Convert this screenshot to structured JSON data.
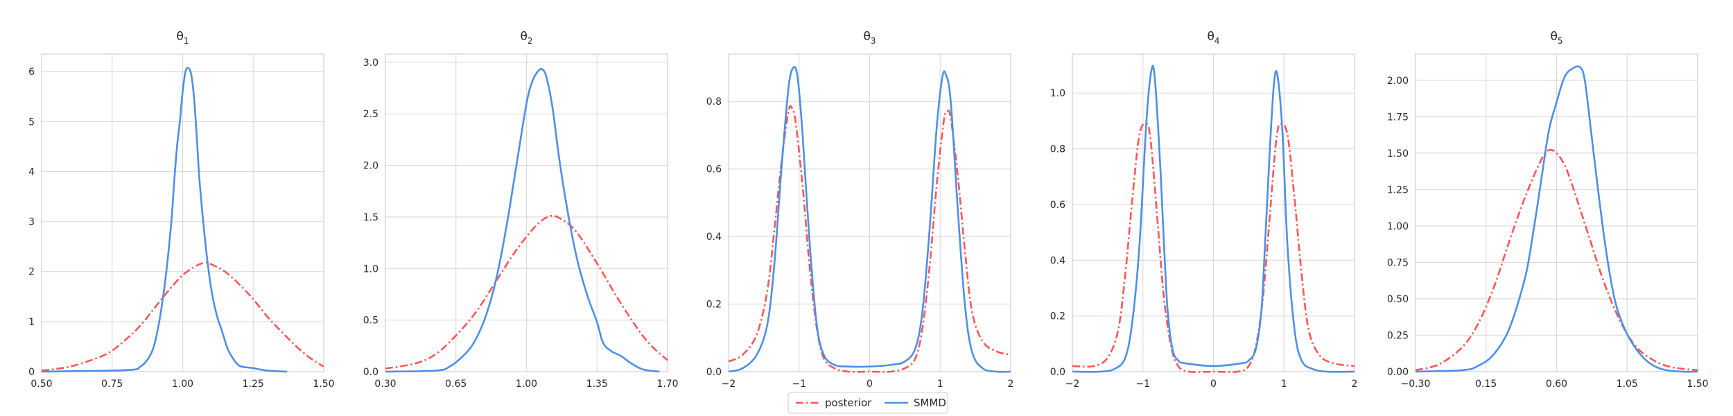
{
  "chart_data": [
    {
      "type": "line",
      "title": "θ",
      "title_sub": "1",
      "xlim": [
        0.5,
        1.5
      ],
      "ylim": [
        0,
        6.35
      ],
      "xticks": [
        0.5,
        0.75,
        1.0,
        1.25,
        1.5
      ],
      "xtick_labels": [
        "0.50",
        "0.75",
        "1.00",
        "1.25",
        "1.50"
      ],
      "yticks": [
        0,
        1,
        2,
        3,
        4,
        5,
        6
      ],
      "ytick_labels": [
        "0",
        "1",
        "2",
        "3",
        "4",
        "5",
        "6"
      ],
      "grid": true,
      "series": [
        {
          "name": "posterior",
          "style": "dashdot",
          "color": "#ff5555",
          "x": [
            0.5,
            0.6,
            0.7,
            0.75,
            0.8,
            0.85,
            0.9,
            0.95,
            1.0,
            1.05,
            1.08,
            1.1,
            1.15,
            1.2,
            1.25,
            1.3,
            1.35,
            1.4,
            1.45,
            1.5
          ],
          "y": [
            0.02,
            0.1,
            0.28,
            0.42,
            0.65,
            0.92,
            1.27,
            1.62,
            1.93,
            2.12,
            2.18,
            2.15,
            2.0,
            1.75,
            1.45,
            1.1,
            0.8,
            0.52,
            0.28,
            0.1
          ]
        },
        {
          "name": "SMMD",
          "style": "solid",
          "color": "#4c8fe8",
          "x": [
            0.5,
            0.8,
            0.85,
            0.88,
            0.9,
            0.92,
            0.94,
            0.96,
            0.97,
            0.98,
            0.99,
            1.0,
            1.01,
            1.02,
            1.03,
            1.04,
            1.05,
            1.06,
            1.08,
            1.1,
            1.12,
            1.14,
            1.16,
            1.18,
            1.2,
            1.22,
            1.25,
            1.3,
            1.37
          ],
          "y": [
            0.0,
            0.03,
            0.1,
            0.28,
            0.55,
            1.1,
            1.9,
            3.0,
            3.8,
            4.5,
            5.0,
            5.6,
            6.0,
            6.07,
            5.95,
            5.5,
            4.7,
            3.8,
            2.6,
            1.7,
            1.15,
            0.8,
            0.45,
            0.25,
            0.12,
            0.09,
            0.07,
            0.02,
            0.0
          ]
        }
      ]
    },
    {
      "type": "line",
      "title": "θ",
      "title_sub": "2",
      "xlim": [
        0.3,
        1.7
      ],
      "ylim": [
        0,
        3.08
      ],
      "xticks": [
        0.3,
        0.65,
        1.0,
        1.35,
        1.7
      ],
      "xtick_labels": [
        "0.30",
        "0.65",
        "1.00",
        "1.35",
        "1.70"
      ],
      "yticks": [
        0,
        0.5,
        1.0,
        1.5,
        2.0,
        2.5,
        3.0
      ],
      "ytick_labels": [
        "0.0",
        "0.5",
        "1.0",
        "1.5",
        "2.0",
        "2.5",
        "3.0"
      ],
      "grid": true,
      "series": [
        {
          "name": "posterior",
          "style": "dashdot",
          "color": "#ff5555",
          "x": [
            0.3,
            0.45,
            0.55,
            0.65,
            0.75,
            0.85,
            0.95,
            1.05,
            1.12,
            1.18,
            1.25,
            1.35,
            1.45,
            1.55,
            1.62,
            1.7
          ],
          "y": [
            0.03,
            0.08,
            0.17,
            0.35,
            0.58,
            0.88,
            1.18,
            1.42,
            1.51,
            1.47,
            1.35,
            1.05,
            0.72,
            0.42,
            0.25,
            0.11
          ]
        },
        {
          "name": "SMMD",
          "style": "solid",
          "color": "#4c8fe8",
          "x": [
            0.3,
            0.55,
            0.62,
            0.7,
            0.75,
            0.8,
            0.85,
            0.9,
            0.95,
            1.0,
            1.03,
            1.06,
            1.08,
            1.1,
            1.13,
            1.16,
            1.2,
            1.25,
            1.3,
            1.35,
            1.38,
            1.42,
            1.47,
            1.52,
            1.58,
            1.66
          ],
          "y": [
            0.0,
            0.01,
            0.05,
            0.18,
            0.32,
            0.55,
            0.9,
            1.4,
            2.0,
            2.6,
            2.82,
            2.92,
            2.93,
            2.85,
            2.55,
            2.1,
            1.6,
            1.1,
            0.75,
            0.48,
            0.28,
            0.2,
            0.15,
            0.08,
            0.02,
            0.0
          ]
        }
      ]
    },
    {
      "type": "line",
      "title": "θ",
      "title_sub": "3",
      "xlim": [
        -2,
        2
      ],
      "ylim": [
        0,
        0.94
      ],
      "xticks": [
        -2,
        -1,
        0,
        1,
        2
      ],
      "xtick_labels": [
        "−2",
        "−1",
        "0",
        "1",
        "2"
      ],
      "yticks": [
        0,
        0.2,
        0.4,
        0.6,
        0.8
      ],
      "ytick_labels": [
        "0.0",
        "0.2",
        "0.4",
        "0.6",
        "0.8"
      ],
      "grid": true,
      "series": [
        {
          "name": "posterior",
          "style": "dashdot",
          "color": "#ff5555",
          "x": [
            -2,
            -1.8,
            -1.6,
            -1.45,
            -1.35,
            -1.25,
            -1.15,
            -1.1,
            -1.05,
            -0.95,
            -0.85,
            -0.75,
            -0.65,
            -0.5,
            -0.3,
            0,
            0.3,
            0.5,
            0.65,
            0.75,
            0.85,
            0.95,
            1.05,
            1.1,
            1.15,
            1.25,
            1.35,
            1.45,
            1.6,
            1.8,
            2
          ],
          "y": [
            0.03,
            0.05,
            0.11,
            0.24,
            0.42,
            0.62,
            0.77,
            0.78,
            0.74,
            0.55,
            0.31,
            0.13,
            0.04,
            0.01,
            0.0,
            0.0,
            0.0,
            0.01,
            0.04,
            0.13,
            0.31,
            0.55,
            0.74,
            0.77,
            0.75,
            0.58,
            0.36,
            0.18,
            0.09,
            0.06,
            0.05
          ]
        },
        {
          "name": "SMMD",
          "style": "solid",
          "color": "#4c8fe8",
          "x": [
            -2,
            -1.8,
            -1.6,
            -1.45,
            -1.35,
            -1.25,
            -1.15,
            -1.08,
            -1.02,
            -0.95,
            -0.85,
            -0.75,
            -0.65,
            -0.5,
            -0.3,
            0,
            0.3,
            0.5,
            0.65,
            0.75,
            0.85,
            0.95,
            1.03,
            1.08,
            1.15,
            1.25,
            1.35,
            1.45,
            1.6,
            1.8,
            2
          ],
          "y": [
            0.0,
            0.01,
            0.05,
            0.14,
            0.32,
            0.6,
            0.84,
            0.9,
            0.87,
            0.7,
            0.38,
            0.14,
            0.05,
            0.02,
            0.015,
            0.015,
            0.02,
            0.03,
            0.07,
            0.18,
            0.42,
            0.72,
            0.87,
            0.88,
            0.8,
            0.48,
            0.2,
            0.06,
            0.01,
            0.0,
            0.0
          ]
        }
      ]
    },
    {
      "type": "line",
      "title": "θ",
      "title_sub": "4",
      "xlim": [
        -2,
        2
      ],
      "ylim": [
        0,
        1.14
      ],
      "xticks": [
        -2,
        -1,
        0,
        1,
        2
      ],
      "xtick_labels": [
        "−2",
        "−1",
        "0",
        "1",
        "2"
      ],
      "yticks": [
        0,
        0.2,
        0.4,
        0.6,
        0.8,
        1.0
      ],
      "ytick_labels": [
        "0.0",
        "0.2",
        "0.4",
        "0.6",
        "0.8",
        "1.0"
      ],
      "grid": true,
      "series": [
        {
          "name": "posterior",
          "style": "dashdot",
          "color": "#ff5555",
          "x": [
            -2,
            -1.7,
            -1.5,
            -1.35,
            -1.25,
            -1.15,
            -1.05,
            -0.95,
            -0.9,
            -0.85,
            -0.78,
            -0.7,
            -0.6,
            -0.5,
            -0.35,
            0,
            0.35,
            0.5,
            0.6,
            0.7,
            0.78,
            0.85,
            0.9,
            0.95,
            1.05,
            1.15,
            1.25,
            1.35,
            1.5,
            1.7,
            2
          ],
          "y": [
            0.02,
            0.02,
            0.05,
            0.15,
            0.35,
            0.62,
            0.85,
            0.89,
            0.85,
            0.72,
            0.5,
            0.26,
            0.09,
            0.02,
            0.0,
            0.0,
            0.0,
            0.02,
            0.09,
            0.26,
            0.5,
            0.72,
            0.85,
            0.89,
            0.85,
            0.62,
            0.35,
            0.15,
            0.06,
            0.03,
            0.02
          ]
        },
        {
          "name": "SMMD",
          "style": "solid",
          "color": "#4c8fe8",
          "x": [
            -2,
            -1.6,
            -1.4,
            -1.25,
            -1.15,
            -1.05,
            -0.95,
            -0.88,
            -0.83,
            -0.75,
            -0.7,
            -0.65,
            -0.58,
            -0.5,
            -0.4,
            0,
            0.4,
            0.5,
            0.6,
            0.68,
            0.73,
            0.8,
            0.86,
            0.91,
            0.98,
            1.05,
            1.15,
            1.25,
            1.4,
            1.6,
            2
          ],
          "y": [
            0.0,
            0.0,
            0.01,
            0.05,
            0.18,
            0.45,
            0.9,
            1.08,
            1.05,
            0.72,
            0.45,
            0.22,
            0.08,
            0.04,
            0.03,
            0.02,
            0.03,
            0.04,
            0.08,
            0.22,
            0.45,
            0.8,
            1.04,
            1.06,
            0.85,
            0.45,
            0.15,
            0.04,
            0.01,
            0.0,
            0.0
          ]
        }
      ]
    },
    {
      "type": "line",
      "title": "θ",
      "title_sub": "5",
      "xlim": [
        -0.3,
        1.5
      ],
      "ylim": [
        0,
        2.18
      ],
      "xticks": [
        -0.3,
        0.15,
        0.6,
        1.05,
        1.5
      ],
      "xtick_labels": [
        "−0.30",
        "0.15",
        "0.60",
        "1.05",
        "1.50"
      ],
      "yticks": [
        0,
        0.25,
        0.5,
        0.75,
        1.0,
        1.25,
        1.5,
        1.75,
        2.0
      ],
      "ytick_labels": [
        "0.00",
        "0.25",
        "0.50",
        "0.75",
        "1.00",
        "1.25",
        "1.50",
        "1.75",
        "2.00"
      ],
      "grid": true,
      "series": [
        {
          "name": "posterior",
          "style": "dashdot",
          "color": "#ff5555",
          "x": [
            -0.3,
            -0.15,
            0.0,
            0.1,
            0.2,
            0.3,
            0.4,
            0.5,
            0.55,
            0.6,
            0.65,
            0.7,
            0.8,
            0.9,
            1.0,
            1.1,
            1.2,
            1.3,
            1.4,
            1.5
          ],
          "y": [
            0.01,
            0.05,
            0.17,
            0.33,
            0.58,
            0.9,
            1.2,
            1.45,
            1.52,
            1.5,
            1.42,
            1.28,
            0.95,
            0.62,
            0.36,
            0.18,
            0.09,
            0.04,
            0.02,
            0.01
          ]
        },
        {
          "name": "SMMD",
          "style": "solid",
          "color": "#4c8fe8",
          "x": [
            -0.3,
            0.0,
            0.1,
            0.2,
            0.3,
            0.4,
            0.45,
            0.5,
            0.55,
            0.6,
            0.65,
            0.7,
            0.75,
            0.78,
            0.82,
            0.87,
            0.92,
            0.97,
            1.02,
            1.08,
            1.15,
            1.22,
            1.3,
            1.4,
            1.5
          ],
          "y": [
            0.0,
            0.01,
            0.04,
            0.12,
            0.3,
            0.65,
            0.95,
            1.3,
            1.65,
            1.85,
            2.02,
            2.08,
            2.09,
            2.0,
            1.65,
            1.2,
            0.8,
            0.5,
            0.33,
            0.2,
            0.1,
            0.04,
            0.01,
            0.0,
            0.0
          ]
        }
      ]
    }
  ],
  "legend": {
    "placement": "bottom-center",
    "items": [
      {
        "label": "posterior",
        "style": "dashdot",
        "color": "#ff5555"
      },
      {
        "label": "SMMD",
        "style": "solid",
        "color": "#4c8fe8"
      }
    ]
  }
}
